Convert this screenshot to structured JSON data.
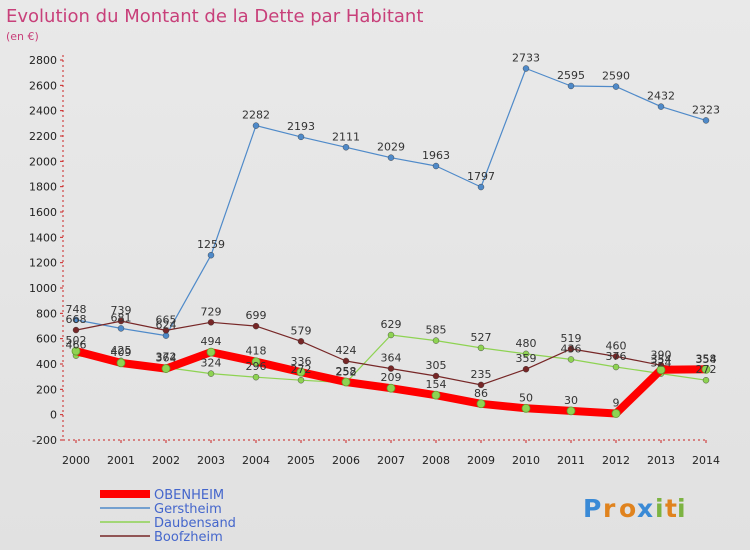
{
  "chart_data": {
    "type": "line",
    "title": "Evolution du Montant de la Dette par Habitant",
    "subtitle": "(en €)",
    "x": [
      "2000",
      "2001",
      "2002",
      "2003",
      "2004",
      "2005",
      "2006",
      "2007",
      "2008",
      "2009",
      "2010",
      "2011",
      "2012",
      "2013",
      "2014"
    ],
    "ylim": [
      -200,
      2800
    ],
    "yticks": [
      -200,
      0,
      200,
      400,
      600,
      800,
      1000,
      1200,
      1400,
      1600,
      1800,
      2000,
      2200,
      2400,
      2600,
      2800
    ],
    "grid": false,
    "legend_position": "bottom-left",
    "series": [
      {
        "name": "OBENHEIM",
        "color": "#ff0000",
        "values": [
          502,
          409,
          364,
          494,
          418,
          336,
          258,
          209,
          154,
          86,
          50,
          30,
          9,
          354,
          358
        ]
      },
      {
        "name": "Gerstheim",
        "color": "#4f8ac9",
        "values": [
          748,
          681,
          624,
          1259,
          2282,
          2193,
          2111,
          2029,
          1963,
          1797,
          2733,
          2595,
          2590,
          2432,
          2323
        ]
      },
      {
        "name": "Daubensand",
        "color": "#8ed352",
        "values": [
          466,
          425,
          372,
          324,
          296,
          272,
          252,
          629,
          585,
          527,
          480,
          436,
          376,
          324,
          272
        ]
      },
      {
        "name": "Boofzheim",
        "color": "#772727",
        "values": [
          668,
          739,
          665,
          729,
          699,
          579,
          424,
          364,
          305,
          235,
          359,
          519,
          460,
          390,
          354
        ]
      }
    ]
  },
  "logo": {
    "text": "Proxiti",
    "letters": [
      "P",
      "r",
      "o",
      "x",
      "i",
      "t",
      "i"
    ]
  }
}
